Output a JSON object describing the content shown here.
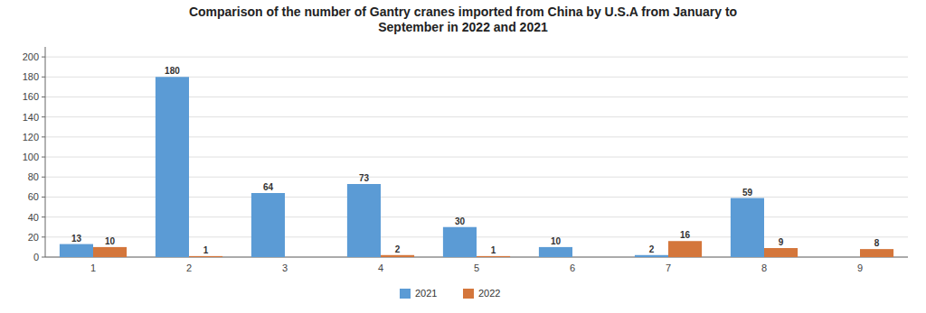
{
  "chart_data": {
    "type": "bar",
    "title": "Comparison of the number of Gantry cranes imported from China by U.S.A from January to\nSeptember in 2022 and 2021",
    "categories": [
      "1",
      "2",
      "3",
      "4",
      "5",
      "6",
      "7",
      "8",
      "9"
    ],
    "series": [
      {
        "name": "2021",
        "color": "#5B9BD5",
        "values": [
          13,
          180,
          64,
          73,
          30,
          10,
          2,
          59,
          0
        ]
      },
      {
        "name": "2022",
        "color": "#D4763B",
        "values": [
          10,
          1,
          0,
          2,
          1,
          0,
          16,
          9,
          8
        ]
      }
    ],
    "ylim": [
      0,
      210
    ],
    "yticks": [
      0,
      20,
      40,
      60,
      80,
      100,
      120,
      140,
      160,
      180,
      200
    ],
    "grid": true,
    "legend": "bottom",
    "data_labels": true
  }
}
